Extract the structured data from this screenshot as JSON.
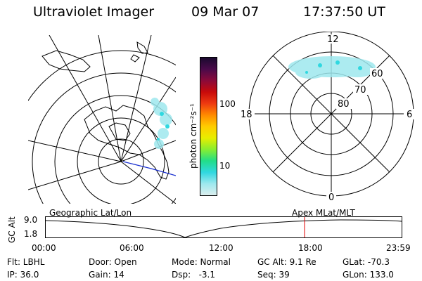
{
  "header": {
    "title": "Ultraviolet Imager",
    "date": "09 Mar 07",
    "time": "17:37:50 UT"
  },
  "colorbar": {
    "unit_label": "photon cm⁻²s⁻¹",
    "ticks": [
      "100",
      "10"
    ],
    "colors": [
      "#1a0a2e",
      "#4a0a4a",
      "#8a0a3a",
      "#c80a0a",
      "#ee3a10",
      "#ff8a00",
      "#ffcc00",
      "#e8ee00",
      "#88ee30",
      "#22dd88",
      "#30d8e0",
      "#9ee8ee",
      "#dceeee"
    ]
  },
  "polar_plot": {
    "labels": {
      "top": "12",
      "left": "18",
      "right": "6",
      "bottom": "0"
    },
    "rings": [
      "60",
      "70",
      "80"
    ]
  },
  "timeline": {
    "left_label": "Geographic Lat/Lon",
    "right_label": "Apex MLat/MLT",
    "axis_title": "GC Alt",
    "y_ticks": [
      "9.0",
      "1.8"
    ],
    "x_ticks": [
      "00:00",
      "06:00",
      "12:00",
      "18:00",
      "23:59"
    ],
    "marker_color": "#e00000"
  },
  "info": {
    "filter": "Flt: LBHL",
    "door": "Door: Open",
    "mode": "Mode: Normal",
    "gc_alt": "GC Alt: 9.1 Re",
    "glat": "GLat: -70.3",
    "ip": "IP: 36.0",
    "gain": "Gain: 14",
    "dsp": "Dsp:   -3.1",
    "seq": "Seq: 39",
    "glon": "GLon: 133.0"
  }
}
